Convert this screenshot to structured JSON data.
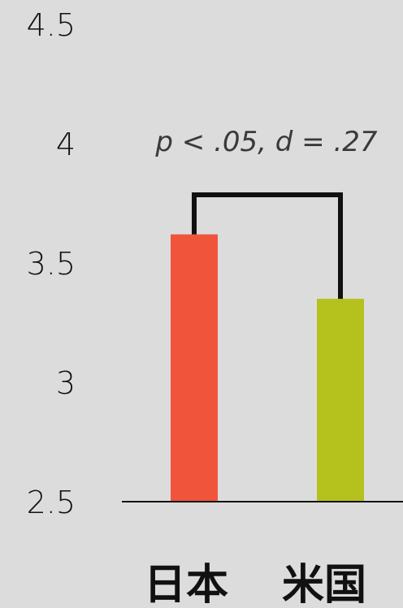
{
  "chart_data": {
    "type": "bar",
    "categories": [
      "日本",
      "米国"
    ],
    "values": [
      3.62,
      3.35
    ],
    "ylim": [
      2.5,
      4.5
    ],
    "yticks": [
      2.5,
      3,
      3.5,
      4,
      4.5
    ],
    "ytick_labels": [
      "2.5",
      "3",
      "3.5",
      "4",
      "4.5"
    ],
    "colors": [
      "#f0553b",
      "#b5c11d"
    ],
    "annotation": "p < .05, d = .27",
    "grid": false,
    "legend": "none"
  }
}
